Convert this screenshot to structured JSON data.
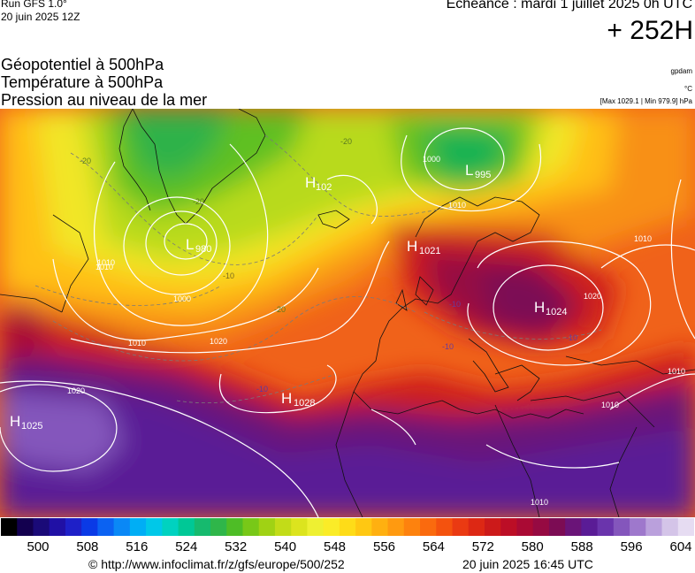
{
  "header": {
    "run": "Run GFS 1.0°",
    "run_date": "20 juin 2025 12Z",
    "echeance": "Echéance : mardi 1 juillet 2025 0h UTC",
    "hour": "+ 252H"
  },
  "titles": [
    "Géopotentiel à 500hPa",
    "Température à 500hPa",
    "Pression au niveau de la mer"
  ],
  "units": [
    "gpdam",
    "°C",
    "[Max 1029.1 | Min 979.9] hPa"
  ],
  "pressure_systems": [
    {
      "type": "H",
      "value": "1025"
    },
    {
      "type": "L",
      "value": "980"
    },
    {
      "type": "H",
      "value": "102"
    },
    {
      "type": "L",
      "value": "995"
    },
    {
      "type": "H",
      "value": "1021"
    },
    {
      "type": "H",
      "value": "1024"
    },
    {
      "type": "H",
      "value": "1028"
    }
  ],
  "isobar_labels": [
    "1000",
    "1010",
    "1020",
    "1010",
    "1020",
    "1010",
    "1010",
    "1000",
    "1010",
    "1020",
    "1010",
    "1010",
    "1010"
  ],
  "temperature_labels": [
    "-20",
    "-20",
    "-20",
    "-20",
    "-10",
    "-10",
    "-10",
    "-10",
    "-10"
  ],
  "colorbar": {
    "ticks": [
      "500",
      "508",
      "516",
      "524",
      "532",
      "540",
      "548",
      "556",
      "564",
      "572",
      "580",
      "588",
      "596",
      "604"
    ],
    "colors": [
      "#000000",
      "#13004f",
      "#1a0a78",
      "#2010a5",
      "#1e20c8",
      "#0a3ae6",
      "#0b62f2",
      "#0a88f6",
      "#00aef5",
      "#00c8e8",
      "#00d2c0",
      "#00c896",
      "#16ba6e",
      "#2fb64a",
      "#4ebd26",
      "#78c818",
      "#a0d214",
      "#c2dc18",
      "#dce41e",
      "#eef032",
      "#faec28",
      "#fedc18",
      "#ffc812",
      "#ffb010",
      "#ff9a10",
      "#fd820e",
      "#fa6a0e",
      "#f4520e",
      "#ea3a12",
      "#dd2814",
      "#cc1a1a",
      "#bc0e26",
      "#aa0a34",
      "#960a42",
      "#7c0c54",
      "#6a1478",
      "#5a1c96",
      "#6a34ac",
      "#8456bc",
      "#9e78cc",
      "#baa0dc",
      "#d4c4e8",
      "#e6dcf2"
    ]
  },
  "footer": {
    "url": "© http://www.infoclimat.fr/z/gfs/europe/500/252",
    "date": "20 juin 2025 16:45 UTC"
  }
}
